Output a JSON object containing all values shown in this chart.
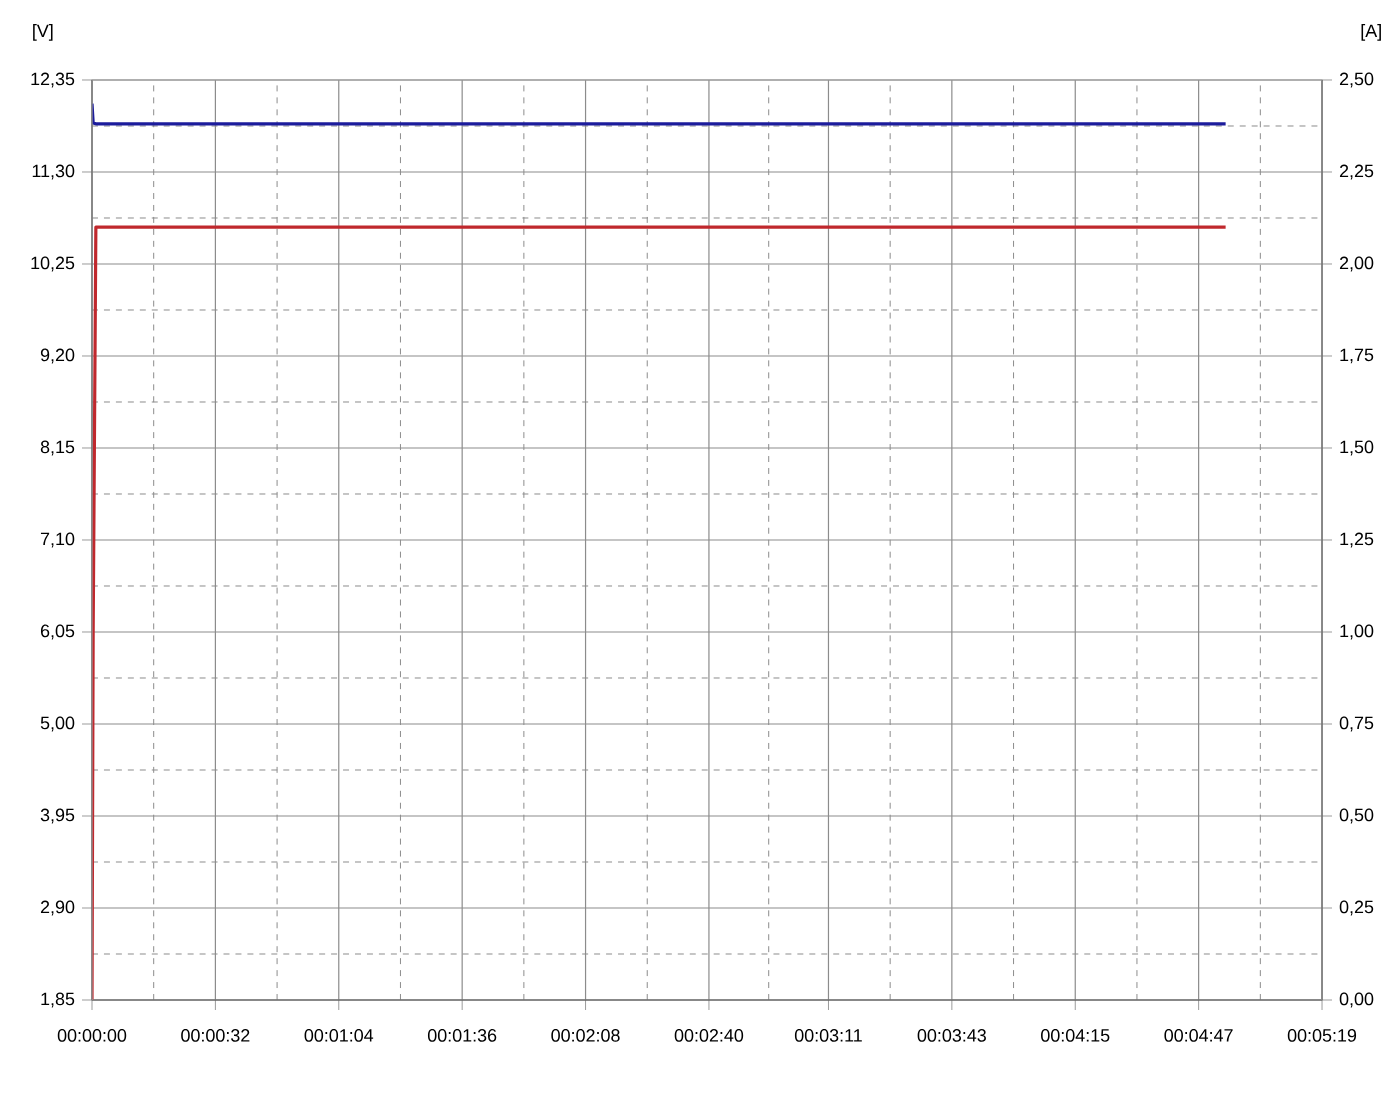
{
  "chart_data": {
    "type": "line",
    "x": [
      0,
      0.3,
      1,
      294
    ],
    "series": [
      {
        "color": "#1c1c9c",
        "values": [
          12.08,
          11.86,
          11.85,
          11.85
        ]
      },
      {
        "color": "#c0282d",
        "axis": "y2",
        "values": [
          0,
          1.0,
          2.1,
          2.1
        ]
      }
    ],
    "ylabel": "[V]",
    "y2label": "[A]",
    "xlim": [
      0,
      319
    ],
    "xticks": [
      {
        "value": 0,
        "label": "00:00:00"
      },
      {
        "value": 32,
        "label": "00:00:32"
      },
      {
        "value": 64,
        "label": "00:01:04"
      },
      {
        "value": 96,
        "label": "00:01:36"
      },
      {
        "value": 128,
        "label": "00:02:08"
      },
      {
        "value": 160,
        "label": "00:02:40"
      },
      {
        "value": 191,
        "label": "00:03:11"
      },
      {
        "value": 223,
        "label": "00:03:43"
      },
      {
        "value": 255,
        "label": "00:04:15"
      },
      {
        "value": 287,
        "label": "00:04:47"
      },
      {
        "value": 319,
        "label": "00:05:19"
      }
    ],
    "ylim": [
      1.85,
      12.35
    ],
    "yticks": [
      {
        "value": 1.85,
        "label": "1,85"
      },
      {
        "value": 2.9,
        "label": "2,90"
      },
      {
        "value": 3.95,
        "label": "3,95"
      },
      {
        "value": 5.0,
        "label": "5,00"
      },
      {
        "value": 6.05,
        "label": "6,05"
      },
      {
        "value": 7.1,
        "label": "7,10"
      },
      {
        "value": 8.15,
        "label": "8,15"
      },
      {
        "value": 9.2,
        "label": "9,20"
      },
      {
        "value": 10.25,
        "label": "10,25"
      },
      {
        "value": 11.3,
        "label": "11,30"
      },
      {
        "value": 12.35,
        "label": "12,35"
      }
    ],
    "y2lim": [
      0,
      2.5
    ],
    "y2ticks": [
      {
        "value": 0,
        "label": "0,00"
      },
      {
        "value": 0.25,
        "label": "0,25"
      },
      {
        "value": 0.5,
        "label": "0,50"
      },
      {
        "value": 0.75,
        "label": "0,75"
      },
      {
        "value": 1.0,
        "label": "1,00"
      },
      {
        "value": 1.25,
        "label": "1,25"
      },
      {
        "value": 1.5,
        "label": "1,50"
      },
      {
        "value": 1.75,
        "label": "1,75"
      },
      {
        "value": 2.0,
        "label": "2,00"
      },
      {
        "value": 2.25,
        "label": "2,25"
      },
      {
        "value": 2.5,
        "label": "2,50"
      }
    ],
    "grid": true,
    "marker": "none",
    "line_style": "solid"
  }
}
